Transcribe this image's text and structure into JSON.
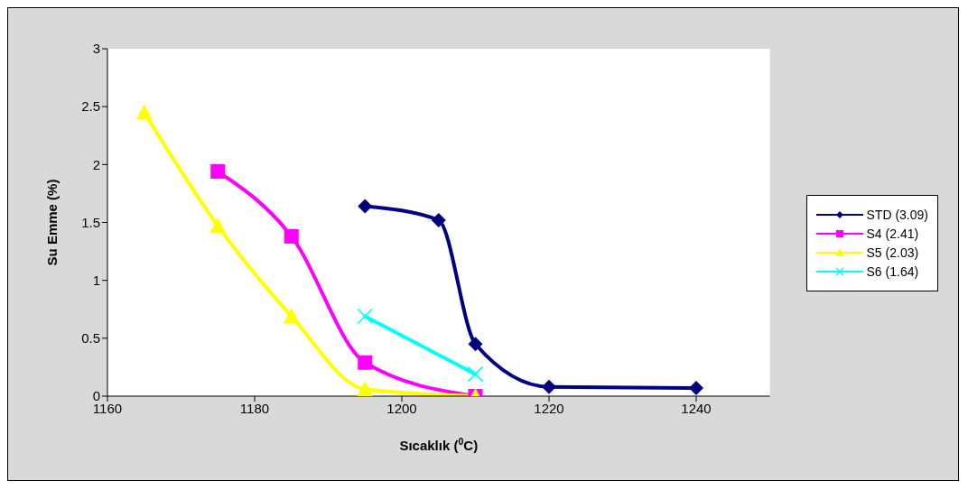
{
  "chart_data": {
    "type": "line",
    "xlabel": "Sıcaklık ($^{0}$C)",
    "ylabel": "Su Emme (%)",
    "xlim": [
      1160,
      1250
    ],
    "xticks": [
      1160,
      1180,
      1200,
      1220,
      1240
    ],
    "ylim": [
      0,
      3
    ],
    "yticks": [
      0,
      0.5,
      1,
      1.5,
      2,
      2.5,
      3
    ],
    "grid": false,
    "legend": "right",
    "line_style": "solid",
    "series": [
      {
        "name": "STD (3.09)",
        "color": "#000080",
        "marker": "diamond",
        "x": [
          1195,
          1205,
          1210,
          1220,
          1240
        ],
        "values": [
          1.64,
          1.52,
          0.45,
          0.08,
          0.07
        ]
      },
      {
        "name": "S4 (2.41)",
        "color": "#ff00ff",
        "marker": "square",
        "x": [
          1175,
          1185,
          1195,
          1210
        ],
        "values": [
          1.94,
          1.38,
          0.29,
          0.0
        ]
      },
      {
        "name": "S5 (2.03)",
        "color": "#ffff00",
        "marker": "triangle",
        "x": [
          1165,
          1175,
          1185,
          1195,
          1210
        ],
        "values": [
          2.45,
          1.47,
          0.69,
          0.06,
          0.0
        ]
      },
      {
        "name": "S6 (1.64)",
        "color": "#00ffff",
        "marker": "cross",
        "x": [
          1195,
          1210
        ],
        "values": [
          0.69,
          0.19
        ]
      }
    ]
  }
}
